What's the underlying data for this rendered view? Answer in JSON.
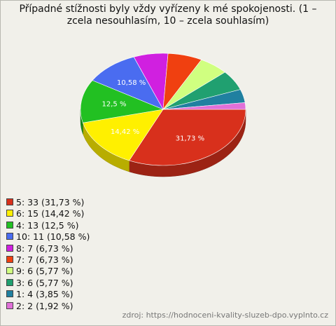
{
  "chart_data": {
    "type": "pie",
    "title": "Případné stížnosti byly vždy vyřízeny k mé spokojenosti. (1 – zcela nesouhlasím, 10 – zcela souhlasím)",
    "categories": [
      "5",
      "6",
      "4",
      "10",
      "8",
      "7",
      "9",
      "3",
      "1",
      "2"
    ],
    "values": [
      31.73,
      14.42,
      12.5,
      10.58,
      6.73,
      6.73,
      5.77,
      5.77,
      3.85,
      1.92
    ],
    "value_labels": [
      "31,73 %",
      "14,42 %",
      "12,5 %",
      "10,58 %",
      null,
      null,
      null,
      null,
      null,
      null
    ],
    "legend_labels": [
      "5: 33 (31,73 %)",
      "6: 15 (14,42 %)",
      "4: 13 (12,5 %)",
      "10: 11 (10,58 %)",
      "8: 7 (6,73 %)",
      "7: 7 (6,73 %)",
      "9: 6 (5,77 %)",
      "3: 6 (5,77 %)",
      "1: 4 (3,85 %)",
      "2: 2 (1,92 %)"
    ],
    "colors": [
      "#d8301c",
      "#fff000",
      "#22c022",
      "#4a6cf0",
      "#d020e0",
      "#f04010",
      "#d0ff80",
      "#20a070",
      "#2080a0",
      "#e070d8"
    ],
    "source": "zdroj: https://hodnoceni-kvality-sluzeb-dpo.vyplnto.cz"
  }
}
